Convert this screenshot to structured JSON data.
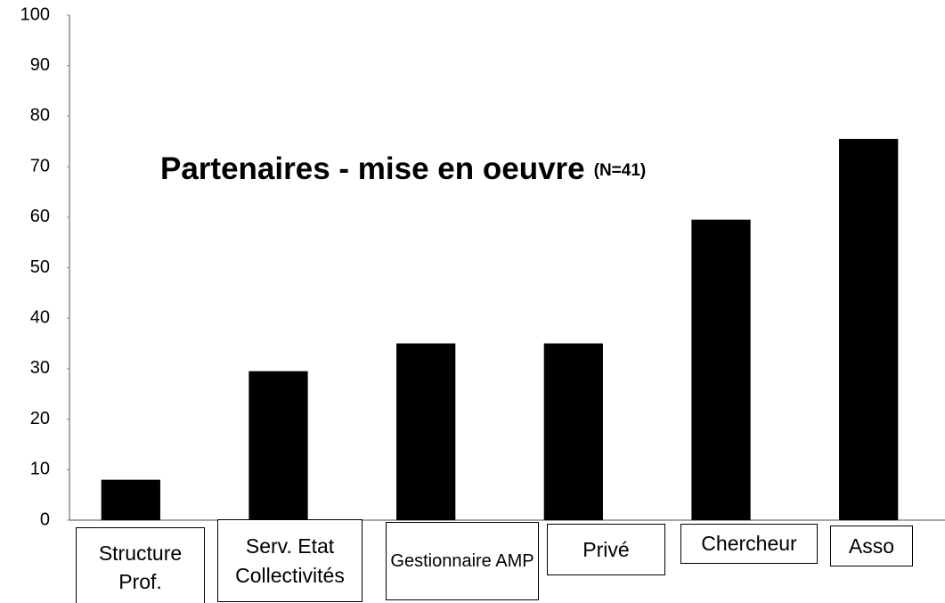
{
  "chart_data": {
    "type": "bar",
    "title": "Partenaires - mise en oeuvre",
    "subtitle": "(N=41)",
    "categories": [
      "Structure Prof.",
      "Serv. Etat Collectivités",
      "Gestionnaire AMP",
      "Privé",
      "Chercheur",
      "Asso"
    ],
    "values": [
      8,
      29.5,
      35,
      35,
      59.5,
      75.5
    ],
    "color": "#000000",
    "ylim": [
      0,
      100
    ],
    "yticks": [
      0,
      10,
      20,
      30,
      40,
      50,
      60,
      70,
      80,
      90,
      100
    ],
    "grid": false
  }
}
